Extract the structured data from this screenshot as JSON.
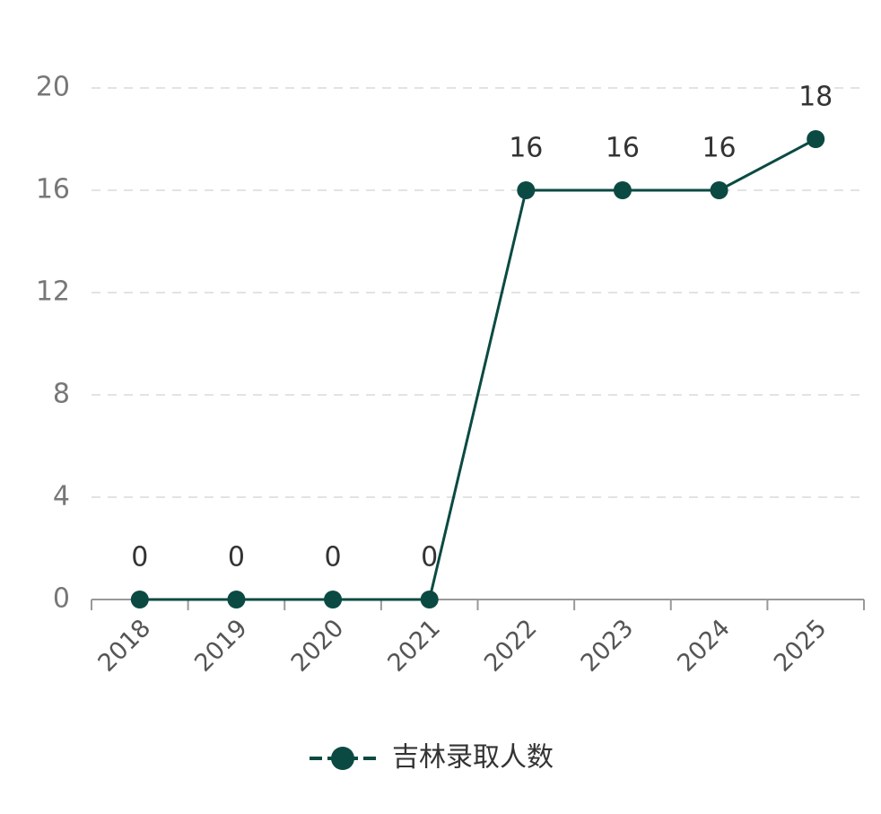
{
  "chart_data": {
    "type": "line",
    "categories": [
      "2018",
      "2019",
      "2020",
      "2021",
      "2022",
      "2023",
      "2024",
      "2025"
    ],
    "series": [
      {
        "name": "吉林录取人数",
        "color": "#0b4a42",
        "values": [
          0,
          0,
          0,
          0,
          16,
          16,
          16,
          18
        ]
      }
    ],
    "ylim": [
      0,
      20
    ],
    "yticks": [
      0,
      4,
      8,
      12,
      16,
      20
    ],
    "grid": true,
    "legend": "bottom"
  }
}
